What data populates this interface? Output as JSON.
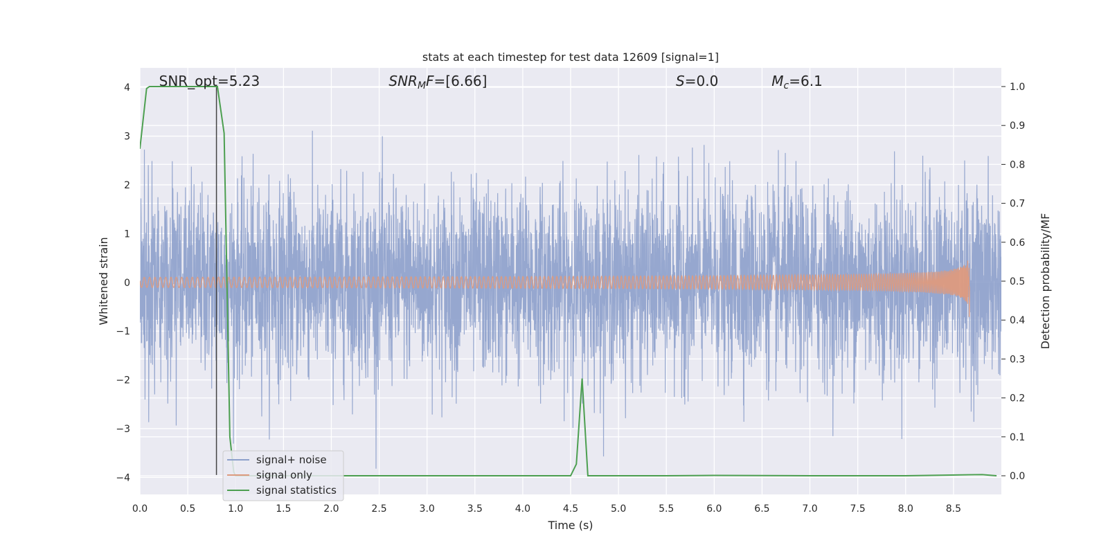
{
  "chart_data": {
    "type": "line",
    "title": "stats at each timestep for test data 12609 [signal=1]",
    "xlabel": "Time (s)",
    "ylabel_left": "Whitened strain",
    "ylabel_right": "Detection probability/MF",
    "xlim": [
      0.0,
      9.0
    ],
    "ylim_left": [
      -4.35,
      4.4
    ],
    "ylim_right": [
      -0.048,
      1.048
    ],
    "x_ticks": [
      "0.0",
      "0.5",
      "1.0",
      "1.5",
      "2.0",
      "2.5",
      "3.0",
      "3.5",
      "4.0",
      "4.5",
      "5.0",
      "5.5",
      "6.0",
      "6.5",
      "7.0",
      "7.5",
      "8.0",
      "8.5"
    ],
    "x_tick_values": [
      0.0,
      0.5,
      1.0,
      1.5,
      2.0,
      2.5,
      3.0,
      3.5,
      4.0,
      4.5,
      5.0,
      5.5,
      6.0,
      6.5,
      7.0,
      7.5,
      8.0,
      8.5
    ],
    "y_left_ticks": [
      "−4",
      "−3",
      "−2",
      "−1",
      "0",
      "1",
      "2",
      "3",
      "4"
    ],
    "y_left_tick_values": [
      -4,
      -3,
      -2,
      -1,
      0,
      1,
      2,
      3,
      4
    ],
    "y_right_ticks": [
      "0.0",
      "0.1",
      "0.2",
      "0.3",
      "0.4",
      "0.5",
      "0.6",
      "0.7",
      "0.8",
      "0.9",
      "1.0"
    ],
    "y_right_tick_values": [
      0.0,
      0.1,
      0.2,
      0.3,
      0.4,
      0.5,
      0.6,
      0.7,
      0.8,
      0.9,
      1.0
    ],
    "grid": true,
    "legend_placement": "lower-left",
    "annotations": [
      {
        "id": "snr-opt",
        "text": "SNR_opt=5.23",
        "x": 0.2
      },
      {
        "id": "snr-mf",
        "text": "SNR_MF=[6.66]",
        "x": 2.6
      },
      {
        "id": "s-value",
        "text": "S=0.0",
        "x": 5.6
      },
      {
        "id": "mc-value",
        "text": "M_c=6.1",
        "x": 6.6
      }
    ],
    "marker_line": {
      "x": 0.8,
      "y_from": -3.95,
      "y_to": 4.0,
      "color": "#444444"
    },
    "series": [
      {
        "name": "signal+ noise",
        "axis": "left",
        "color": "#8da0cb",
        "kind": "noise",
        "x_range": [
          0.0,
          9.0
        ],
        "amplitude_typical": 1.6,
        "amplitude_max": 3.85
      },
      {
        "name": "signal only",
        "axis": "left",
        "color": "#dd9a7e",
        "kind": "chirp",
        "x_range": [
          0.0,
          8.67
        ],
        "amplitude_start": 0.02,
        "amplitude_end": 0.75
      },
      {
        "name": "signal statistics",
        "axis": "right",
        "color": "#4c9f50",
        "x": [
          0.0,
          0.07,
          0.1,
          0.2,
          0.5,
          0.8,
          0.81,
          0.88,
          0.94,
          0.98,
          1.0,
          2.0,
          3.0,
          4.0,
          4.5,
          4.56,
          4.62,
          4.68,
          5.0,
          5.5,
          6.0,
          7.0,
          8.0,
          8.8,
          8.95
        ],
        "y": [
          0.84,
          0.995,
          1.0,
          1.0,
          1.0,
          1.0,
          1.0,
          0.88,
          0.1,
          0.01,
          0.0,
          0.0,
          0.0,
          0.0,
          0.0,
          0.03,
          0.25,
          0.0,
          0.0,
          0.0,
          0.001,
          0.0,
          0.0,
          0.003,
          0.0
        ]
      }
    ]
  },
  "colors": {
    "plot_bg": "#eaeaf2",
    "grid": "#ffffff",
    "text": "#262626"
  }
}
